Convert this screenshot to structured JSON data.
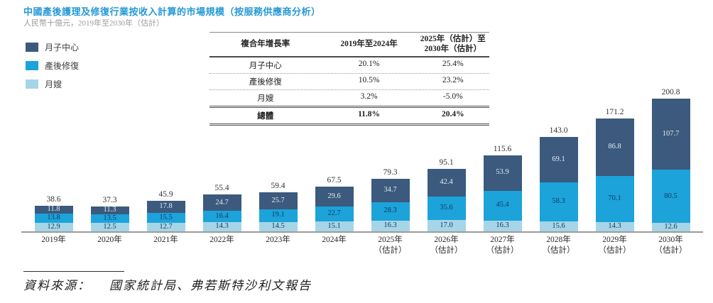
{
  "header": {
    "title": "中國產後護理及修復行業按收入計算的市場規模（按服務供應商分析）",
    "subtitle": "人民幣十億元，2019年至2030年（估計）"
  },
  "colors": {
    "title_blue": "#2599d5",
    "series_dark": "#3b5a7d",
    "series_mid": "#1ba3da",
    "series_light": "#a6d5e8"
  },
  "legend": {
    "items": [
      {
        "label": "月子中心",
        "color": "#3b5a7d"
      },
      {
        "label": "產後修復",
        "color": "#1ba3da"
      },
      {
        "label": "月嫂",
        "color": "#a6d5e8"
      }
    ]
  },
  "cagr_table": {
    "col_headers": [
      "複合年增長率",
      "2019年至2024年",
      "2025年（估計）至\n2030年（估計）"
    ],
    "rows": [
      {
        "label": "月子中心",
        "v1": "20.1%",
        "v2": "25.4%",
        "bold": false
      },
      {
        "label": "產後修復",
        "v1": "10.5%",
        "v2": "23.2%",
        "bold": false
      },
      {
        "label": "月嫂",
        "v1": "3.2%",
        "v2": "-5.0%",
        "bold": false
      },
      {
        "label": "總體",
        "v1": "11.8%",
        "v2": "20.4%",
        "bold": true
      }
    ]
  },
  "chart_data": {
    "type": "bar",
    "stacked": true,
    "title": "中國產後護理及修復行業按收入計算的市場規模（按服務供應商分析）",
    "ylabel": "人民幣十億元",
    "ylim": [
      0,
      210
    ],
    "grid": false,
    "legend_position": "top-left",
    "categories": [
      "2019年",
      "2020年",
      "2021年",
      "2022年",
      "2023年",
      "2024年",
      "2025年",
      "2026年",
      "2027年",
      "2028年",
      "2029年",
      "2030年"
    ],
    "category_sublabels": [
      "",
      "",
      "",
      "",
      "",
      "",
      "（估計）",
      "（估計）",
      "（估計）",
      "（估計）",
      "（估計）",
      "（估計）"
    ],
    "series": [
      {
        "name": "月嫂",
        "color": "#a6d5e8",
        "text_color": "#16375e",
        "values": [
          "12.9",
          "12.5",
          "12.7",
          "14.3",
          "14.5",
          "15.1",
          "16.3",
          "17.0",
          "16.3",
          "15.6",
          "14.3",
          "12.6"
        ]
      },
      {
        "name": "產後修復",
        "color": "#1ba3da",
        "text_color": "#16375e",
        "values": [
          "13.8",
          "13.5",
          "15.5",
          "16.4",
          "19.1",
          "22.7",
          "28.3",
          "35.6",
          "45.4",
          "58.3",
          "70.1",
          "80.5"
        ]
      },
      {
        "name": "月子中心",
        "color": "#3b5a7d",
        "text_color": "#e3ebf4",
        "values": [
          "11.8",
          "11.3",
          "17.8",
          "24.7",
          "25.7",
          "29.6",
          "34.7",
          "42.4",
          "53.9",
          "69.1",
          "86.8",
          "107.7"
        ]
      }
    ],
    "totals": [
      "38.6",
      "37.3",
      "45.9",
      "55.4",
      "59.4",
      "67.5",
      "79.3",
      "95.1",
      "115.6",
      "143.0",
      "171.2",
      "200.8"
    ]
  },
  "source": {
    "label": "資料來源：",
    "text": "國家統計局、弗若斯特沙利文報告"
  }
}
